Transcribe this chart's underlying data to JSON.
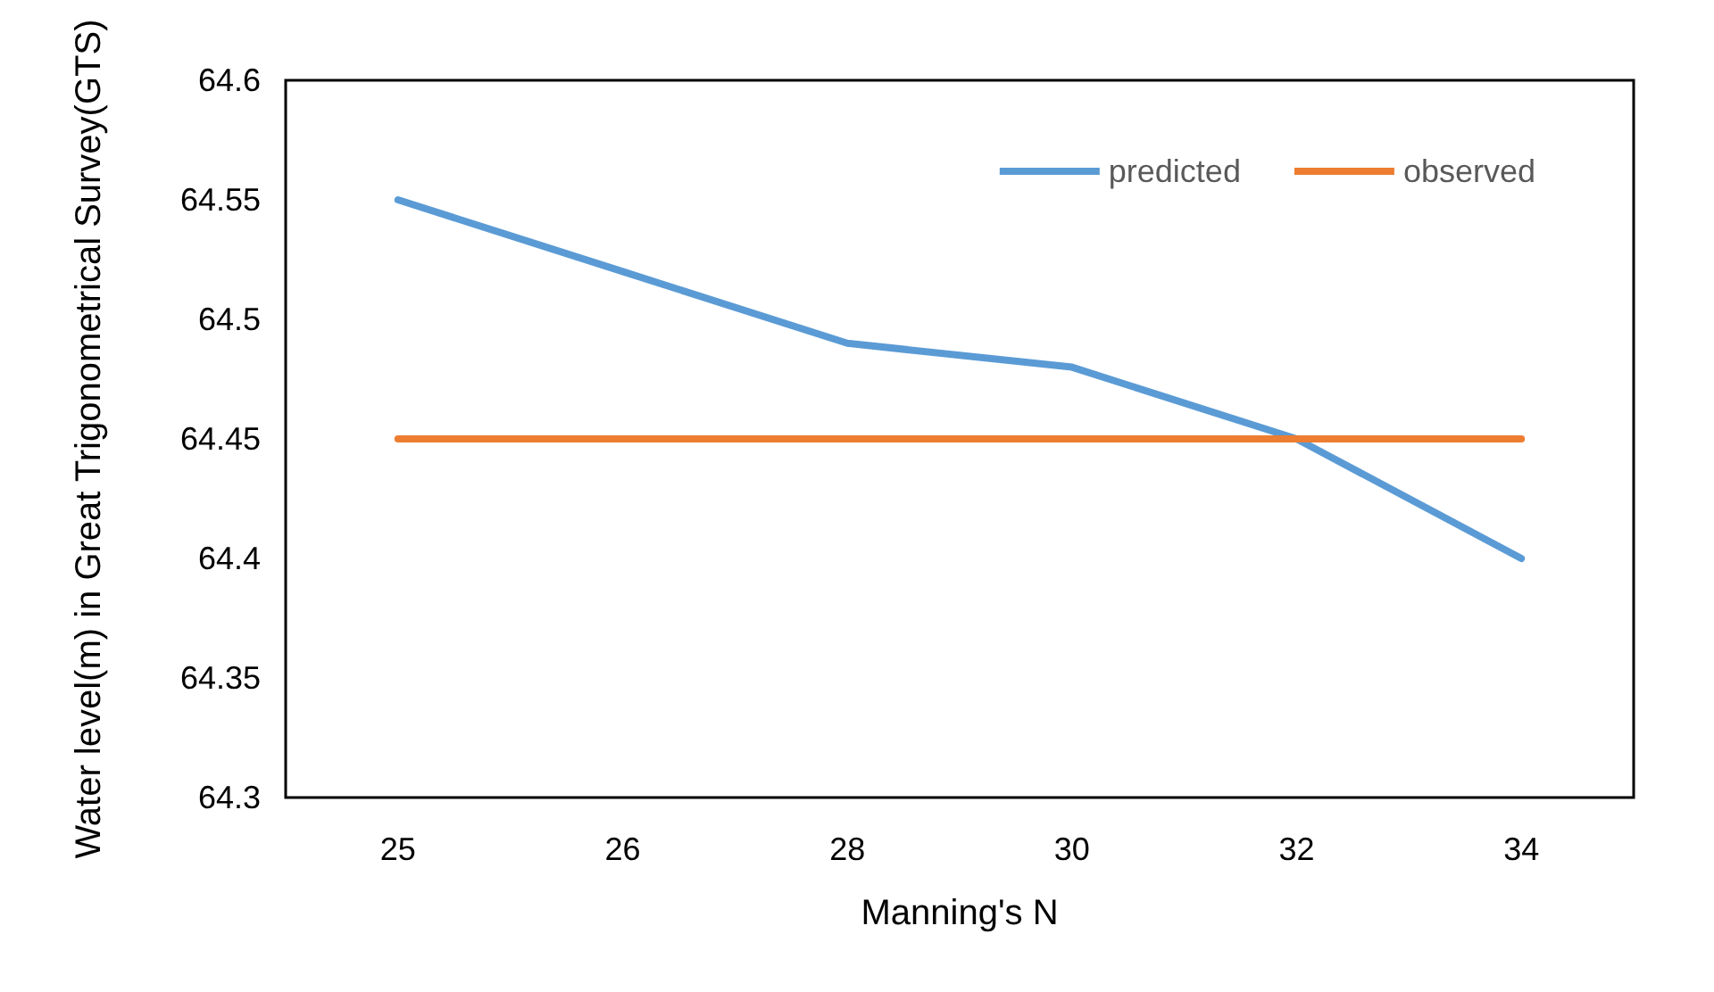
{
  "chart_data": {
    "type": "line",
    "xlabel": "Manning's N",
    "ylabel": "Water level(m) in Great Trigonometrical Survey(GTS)",
    "categories": [
      "25",
      "26",
      "28",
      "30",
      "32",
      "34"
    ],
    "series": [
      {
        "name": "predicted",
        "color": "#5b9bd5",
        "values": [
          64.55,
          64.52,
          64.49,
          64.48,
          64.45,
          64.4
        ]
      },
      {
        "name": "observed",
        "color": "#ed7d31",
        "values": [
          64.45,
          64.45,
          64.45,
          64.45,
          64.45,
          64.45
        ]
      }
    ],
    "ylim": [
      64.3,
      64.6
    ],
    "yticks": [
      64.3,
      64.35,
      64.4,
      64.45,
      64.5,
      64.55,
      64.6
    ],
    "grid": false,
    "legend": "top right",
    "marker": "none",
    "line_style": "solid"
  }
}
